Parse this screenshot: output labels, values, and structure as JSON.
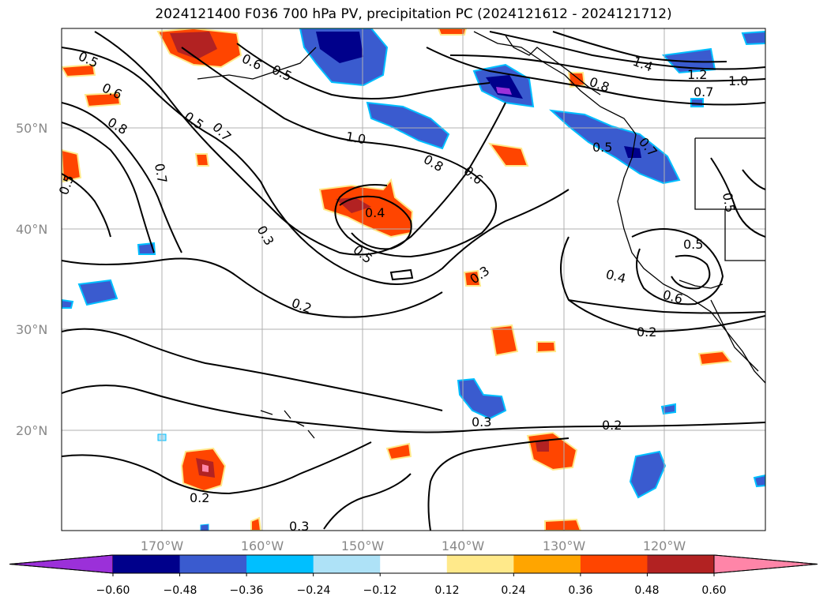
{
  "title": "2024121400 F036 700 hPa PV, precipitation PC (2024121612 - 2024121712)",
  "lat_labels": [
    "50°N",
    "40°N",
    "30°N",
    "20°N"
  ],
  "lon_labels": [
    "170°W",
    "160°W",
    "150°W",
    "140°W",
    "130°W",
    "120°W"
  ],
  "contour_labels": [
    "0.5",
    "0.6",
    "0.8",
    "0.6",
    "0.5",
    "0.5",
    "0.7",
    "1.0",
    "0.8",
    "0.6",
    "0.4",
    "0.5",
    "0.3",
    "0.2",
    "0.3",
    "1.4",
    "1.2",
    "1.0",
    "0.7",
    "0.8",
    "0.5",
    "0.5",
    "0.5",
    "0.4",
    "0.6",
    "0.2",
    "0.3",
    "0.2",
    "0.2",
    "0.3",
    "0.5",
    "0.7",
    "0.7"
  ],
  "colorbar": {
    "colors": [
      "#9b30d9",
      "#00008b",
      "#3a5bcf",
      "#00bfff",
      "#aee2f7",
      "#ffffff",
      "#ffe98a",
      "#ffa500",
      "#ff4500",
      "#b22222",
      "#ff85a8"
    ],
    "ticks": [
      "−0.60",
      "−0.48",
      "−0.36",
      "−0.24",
      "−0.12",
      "0.12",
      "0.24",
      "0.36",
      "0.48",
      "0.60"
    ]
  }
}
